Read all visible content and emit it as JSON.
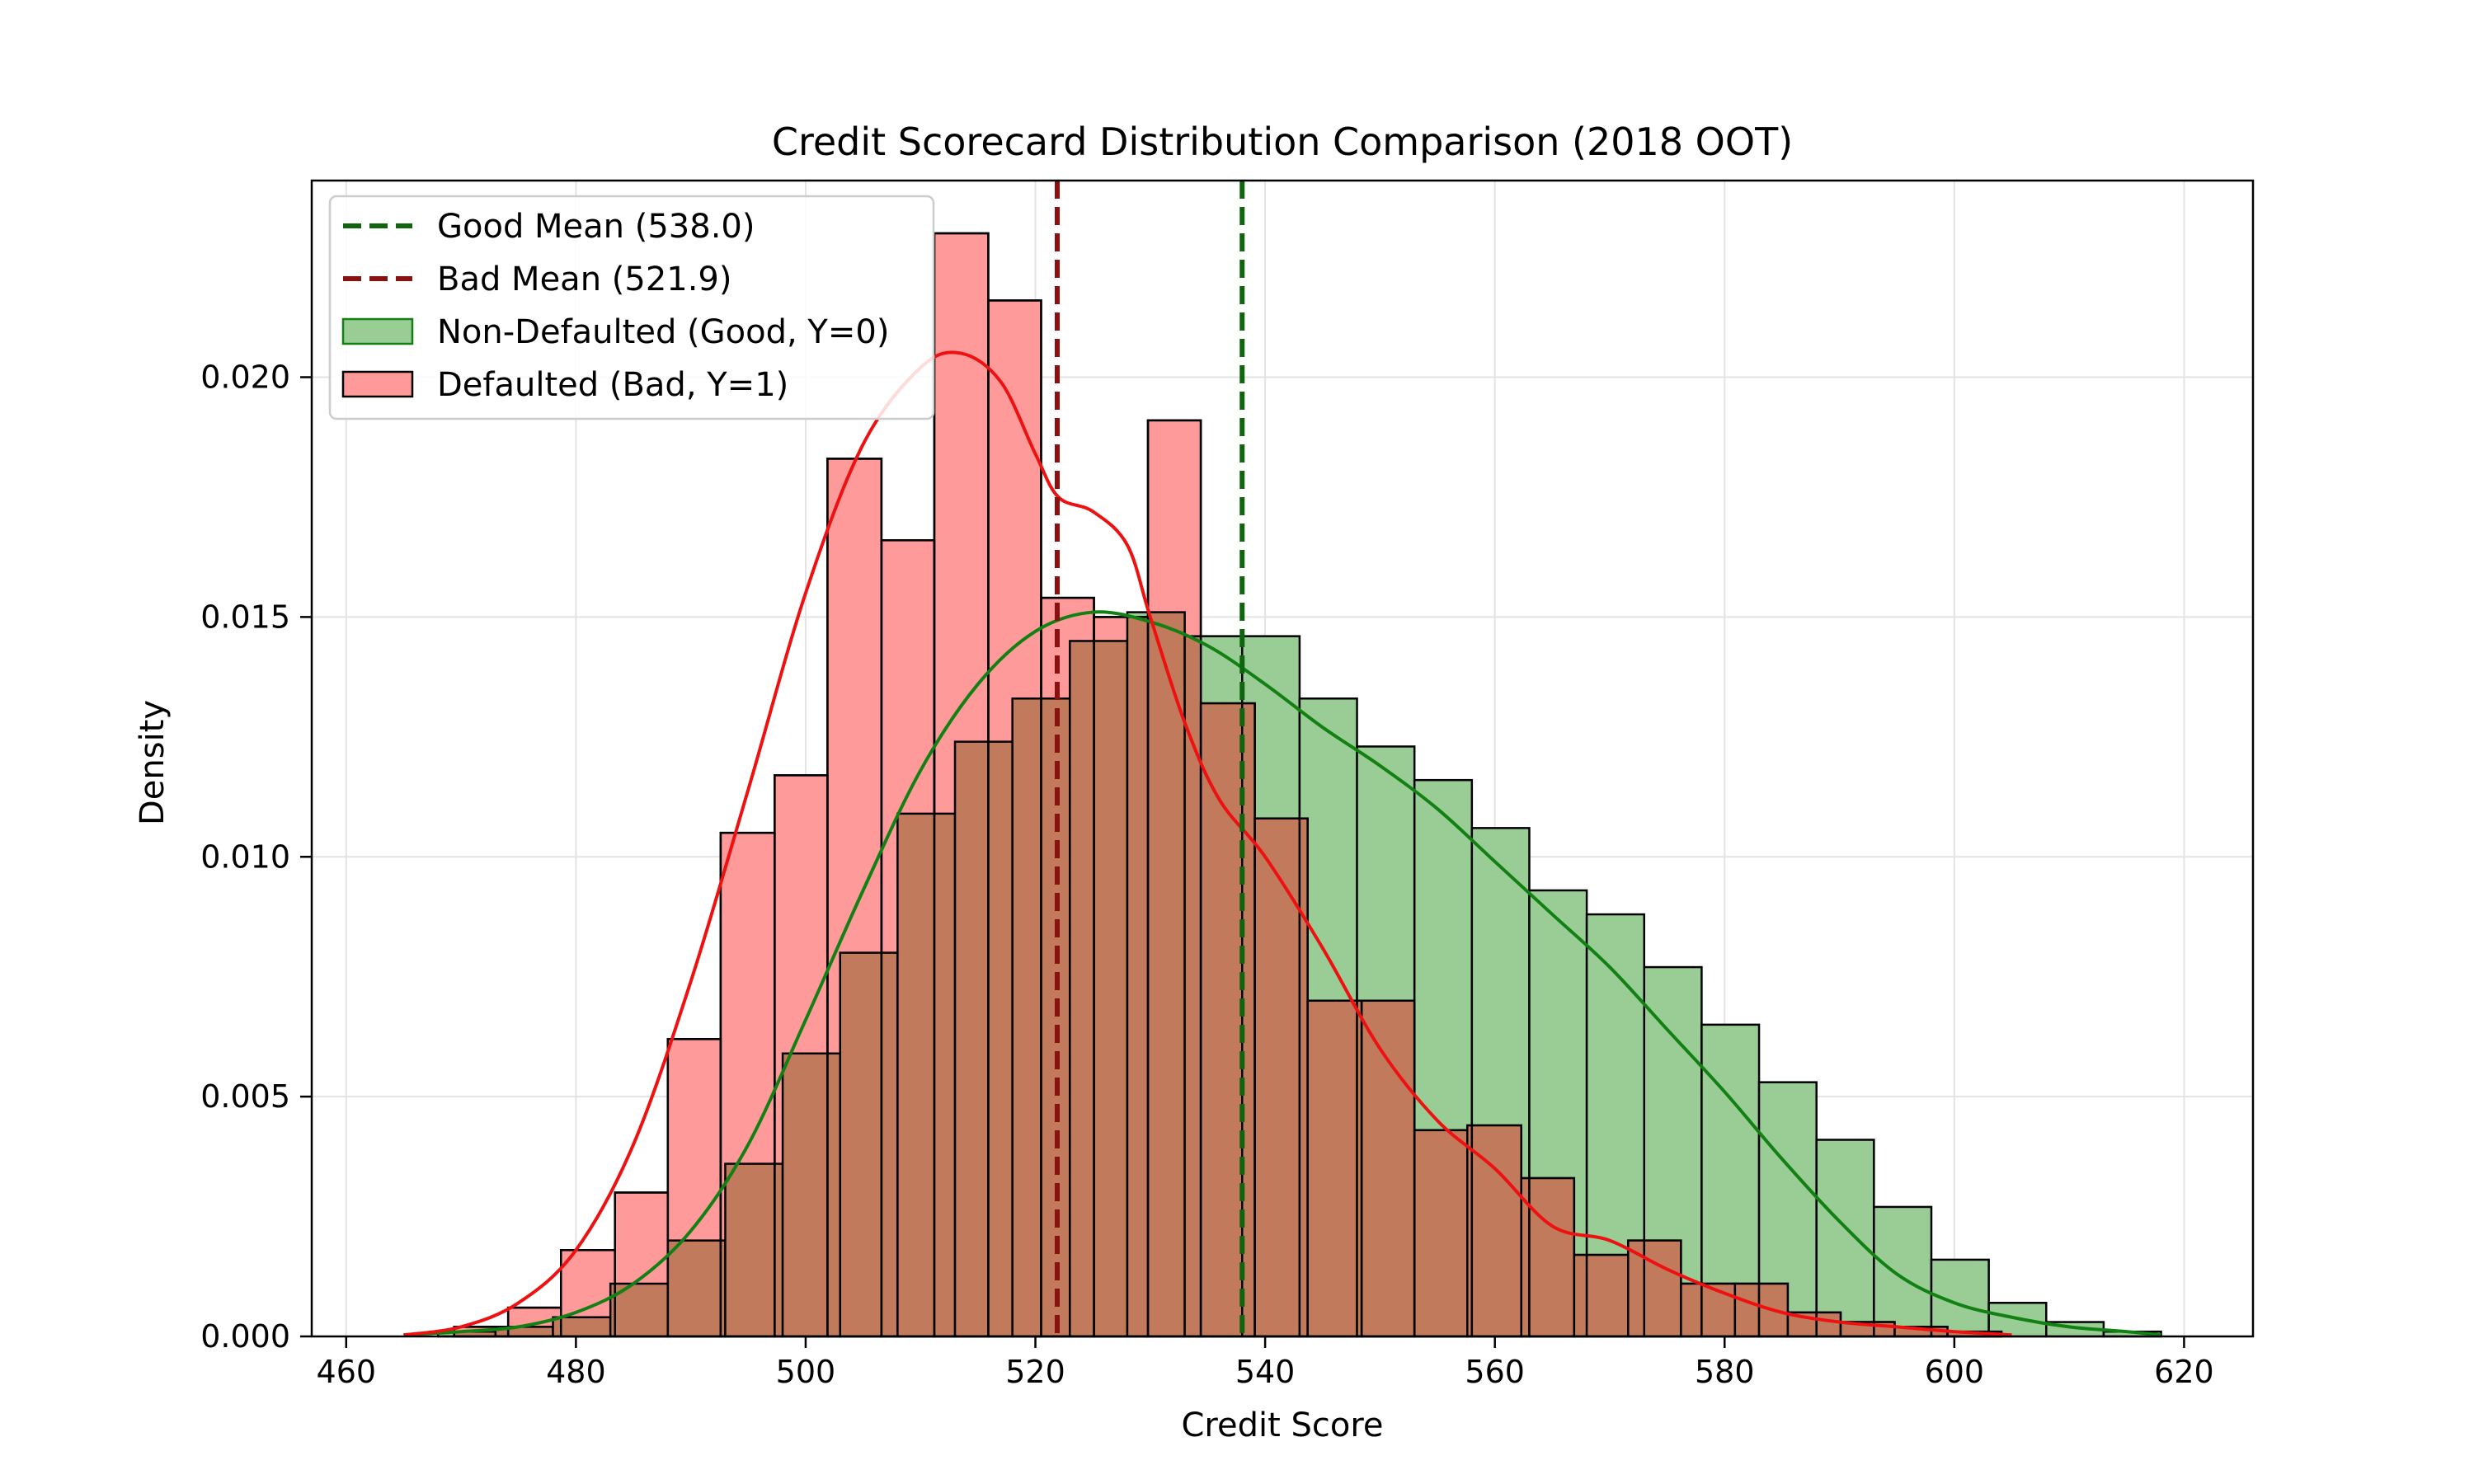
{
  "chart_data": {
    "type": "histogram",
    "title": "Credit Scorecard Distribution Comparison (2018 OOT)",
    "xlabel": "Credit Score",
    "ylabel": "Density",
    "xlim": [
      457,
      626
    ],
    "ylim": [
      0,
      0.0241
    ],
    "xticks": [
      460,
      480,
      500,
      520,
      540,
      560,
      580,
      600,
      620
    ],
    "yticks": [
      0.0,
      0.005,
      0.01,
      0.015,
      0.02
    ],
    "ytick_labels": [
      "0.000",
      "0.005",
      "0.010",
      "0.015",
      "0.020"
    ],
    "grid": true,
    "legend_position": "upper-left",
    "colors": {
      "good_fill": "#9acd96",
      "bad_fill": "#ff9a9a",
      "overlap_fill": "#c27a5c",
      "good_line": "#128012",
      "bad_line": "#ee1111",
      "good_mean_line": "#0e650e",
      "bad_mean_line": "#8b1010"
    },
    "mean_lines": [
      {
        "name": "Good Mean (538.0)",
        "x": 538.0,
        "color": "#0e650e"
      },
      {
        "name": "Bad Mean (521.9)",
        "x": 521.9,
        "color": "#8b1010"
      }
    ],
    "histograms": [
      {
        "name": "Non-Defaulted (Good, Y=0)",
        "bin_edges": [
          468,
          473,
          478,
          483,
          488,
          493,
          498,
          503,
          508,
          513,
          518,
          523,
          528,
          533,
          538,
          543,
          548,
          553,
          558,
          563,
          568,
          573,
          578,
          583,
          588,
          593,
          598,
          603,
          608,
          613,
          618
        ],
        "density": [
          0.0001,
          0.0002,
          0.0004,
          0.0011,
          0.002,
          0.0036,
          0.0059,
          0.008,
          0.0109,
          0.0124,
          0.0133,
          0.0145,
          0.0151,
          0.0146,
          0.0146,
          0.0133,
          0.0123,
          0.0116,
          0.0106,
          0.0093,
          0.0088,
          0.0077,
          0.0065,
          0.0053,
          0.0041,
          0.0027,
          0.0016,
          0.0007,
          0.0003,
          0.0001
        ]
      },
      {
        "name": "Defaulted (Bad, Y=1)",
        "bin_edges": [
          469.4,
          474.1,
          478.7,
          483.4,
          488.0,
          492.6,
          497.3,
          501.9,
          506.6,
          511.2,
          515.9,
          520.5,
          525.1,
          529.8,
          534.4,
          539.1,
          543.7,
          548.4,
          553.0,
          557.6,
          562.3,
          566.9,
          571.6,
          576.2,
          580.9,
          585.5,
          590.1,
          594.8,
          599.4,
          604.1
        ],
        "density": [
          0.0002,
          0.0006,
          0.0018,
          0.003,
          0.0062,
          0.0105,
          0.0117,
          0.0183,
          0.0166,
          0.023,
          0.0216,
          0.0154,
          0.015,
          0.0191,
          0.0132,
          0.0108,
          0.007,
          0.007,
          0.0043,
          0.0044,
          0.0033,
          0.0017,
          0.002,
          0.0011,
          0.0011,
          0.0005,
          0.0003,
          0.0002,
          0.0001
        ]
      }
    ],
    "kde": [
      {
        "name": "Non-Defaulted (Good, Y=0) KDE",
        "x": [
          465,
          470,
          475,
          480,
          485,
          490,
          495,
          500,
          505,
          510,
          515,
          520,
          525,
          530,
          535,
          540,
          545,
          550,
          555,
          560,
          565,
          570,
          575,
          580,
          585,
          590,
          595,
          600,
          605,
          610,
          615,
          618
        ],
        "y": [
          3e-05,
          0.0001,
          0.0002,
          0.0005,
          0.0011,
          0.0022,
          0.004,
          0.0066,
          0.0093,
          0.0118,
          0.0136,
          0.0147,
          0.0151,
          0.0149,
          0.0144,
          0.0136,
          0.0127,
          0.0119,
          0.011,
          0.0099,
          0.0088,
          0.0077,
          0.0064,
          0.0051,
          0.0037,
          0.0024,
          0.0013,
          0.0007,
          0.0004,
          0.0002,
          0.0001,
          3e-05
        ]
      },
      {
        "name": "Defaulted (Bad, Y=1) KDE",
        "x": [
          465,
          470,
          475,
          480,
          485,
          490,
          495,
          500,
          505,
          510,
          513.5,
          517,
          520,
          522,
          525,
          528,
          530,
          533,
          536,
          540,
          545,
          550,
          555,
          560,
          565,
          570,
          575,
          580,
          585,
          590,
          595,
          600,
          605
        ],
        "y": [
          3e-05,
          0.0002,
          0.0007,
          0.0018,
          0.004,
          0.0074,
          0.0114,
          0.0155,
          0.0186,
          0.0202,
          0.0205,
          0.0199,
          0.0184,
          0.0175,
          0.0172,
          0.0165,
          0.015,
          0.0128,
          0.0112,
          0.01,
          0.0081,
          0.006,
          0.0045,
          0.0035,
          0.0023,
          0.002,
          0.0014,
          0.0009,
          0.0005,
          0.0003,
          0.0002,
          0.0001,
          3e-05
        ]
      }
    ],
    "legend": [
      {
        "label": "Good Mean (538.0)",
        "kind": "dashed-line",
        "color": "#0e650e"
      },
      {
        "label": "Bad Mean (521.9)",
        "kind": "dashed-line",
        "color": "#8b1010"
      },
      {
        "label": "Non-Defaulted (Good, Y=0)",
        "kind": "patch",
        "color": "#9acd96"
      },
      {
        "label": "Defaulted (Bad, Y=1)",
        "kind": "patch",
        "color": "#ff9a9a"
      }
    ]
  }
}
